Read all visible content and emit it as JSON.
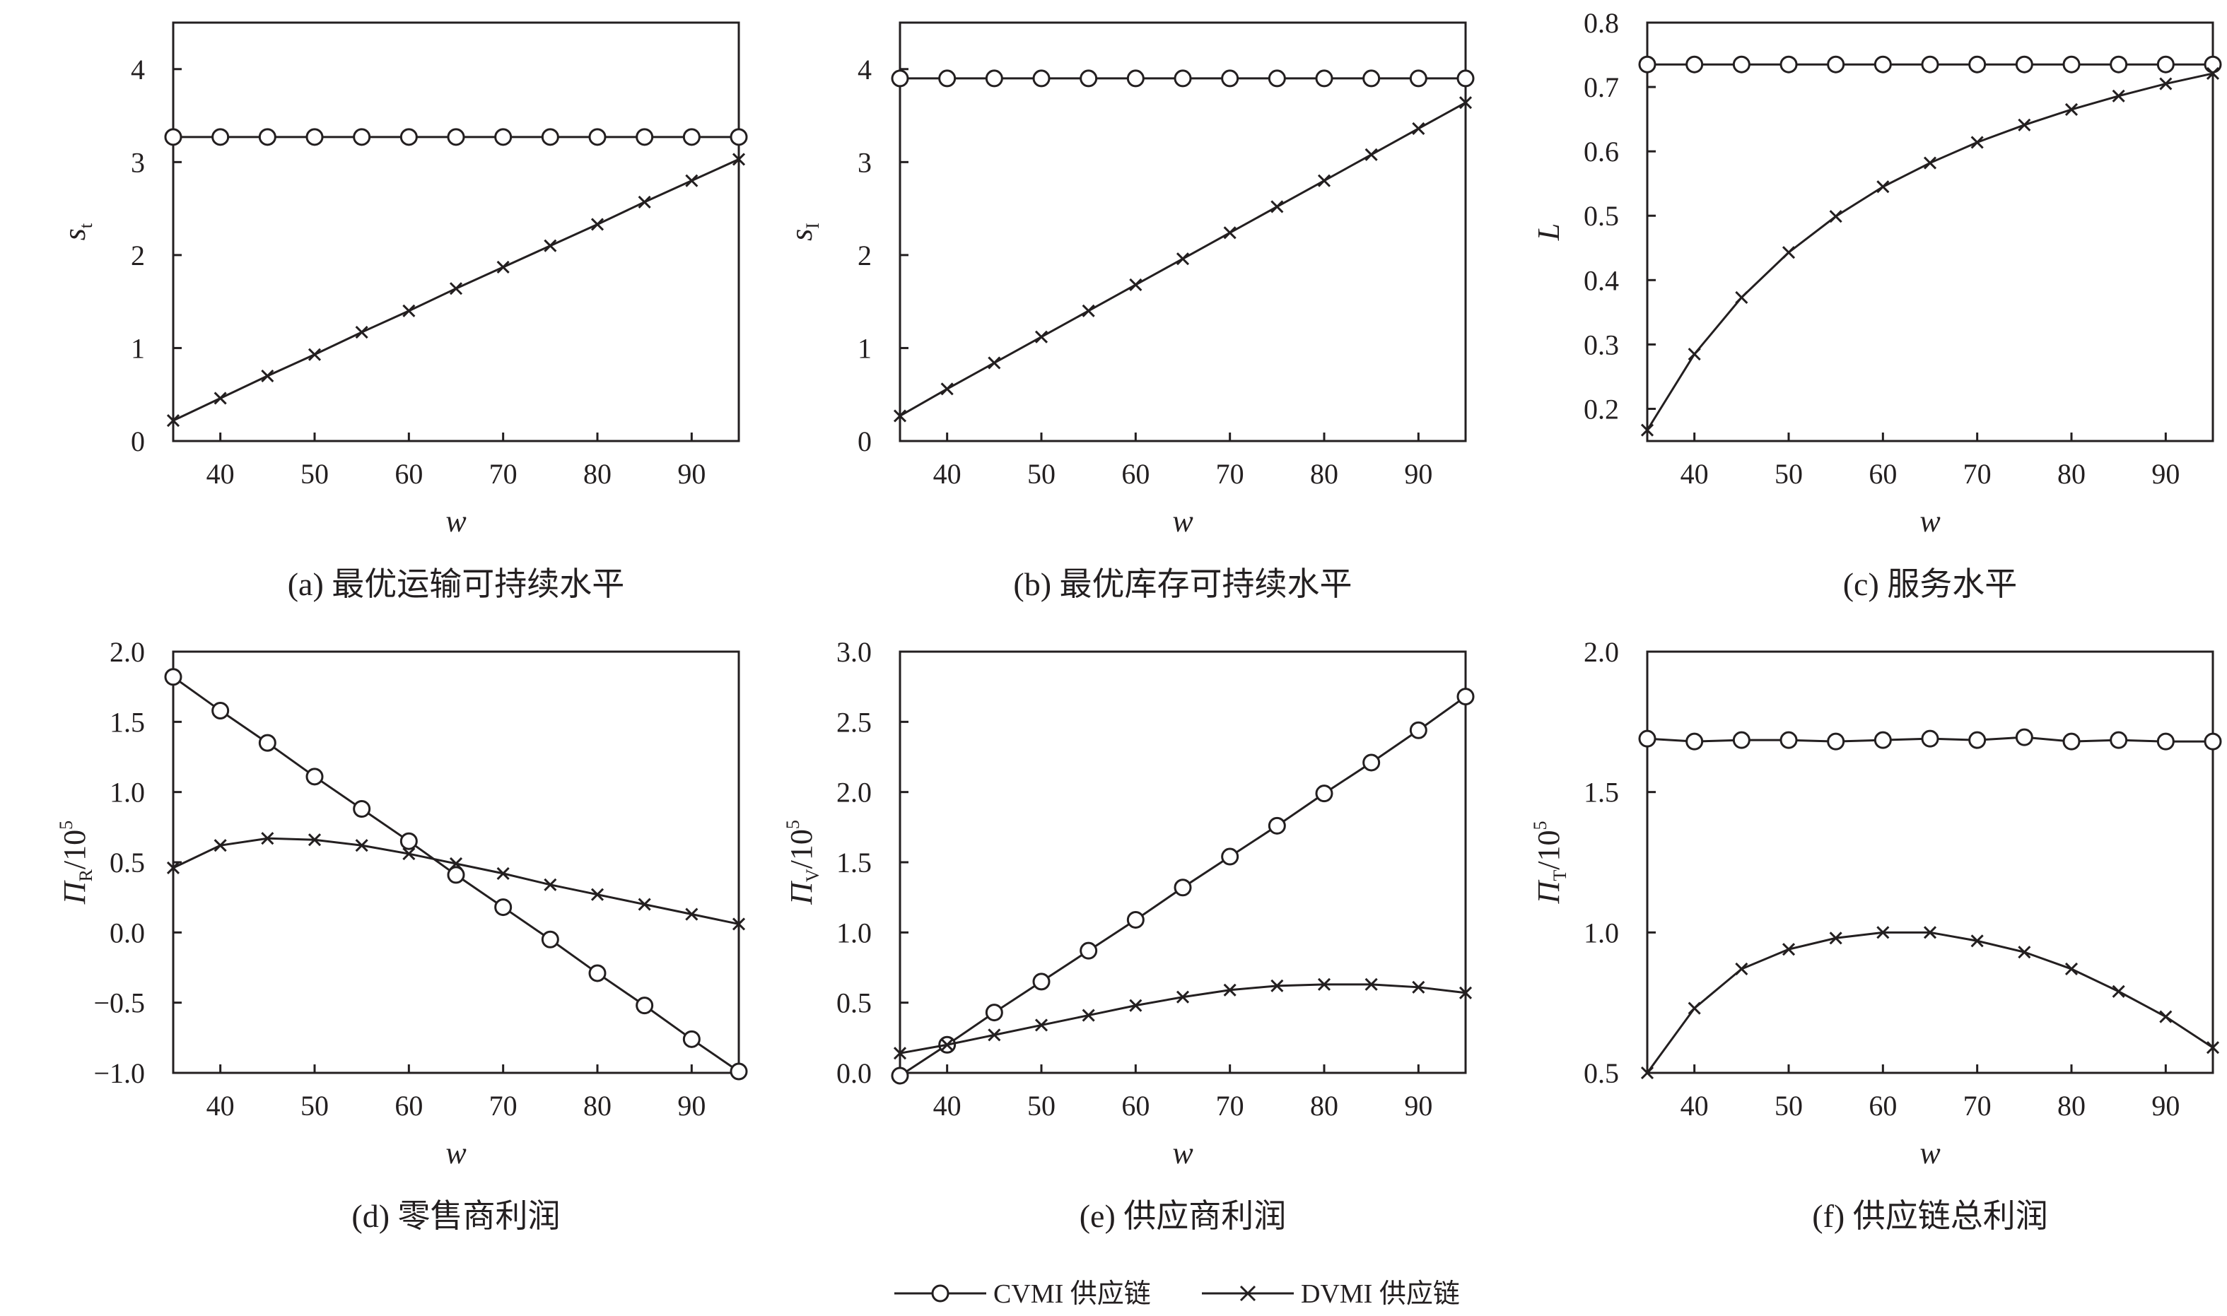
{
  "chart_data": [
    {
      "type": "line",
      "caption": "(a) 最优运输可持续水平",
      "xlabel": "w",
      "ylabel": "s",
      "ylabel_sub": "t",
      "ylabel_sup": "",
      "ylabel_suffix": "",
      "xlim": [
        35,
        95
      ],
      "ylim": [
        0,
        4.5
      ],
      "xticks": [
        40,
        50,
        60,
        70,
        80,
        90
      ],
      "yticks": [
        0,
        1,
        2,
        3,
        4
      ],
      "ytick_labels": [
        "0",
        "1",
        "2",
        "3",
        "4"
      ],
      "x": [
        35,
        40,
        45,
        50,
        55,
        60,
        65,
        70,
        75,
        80,
        85,
        90,
        95
      ],
      "series": [
        {
          "name": "CVMI 供应链",
          "marker": "circle",
          "values": [
            3.27,
            3.27,
            3.27,
            3.27,
            3.27,
            3.27,
            3.27,
            3.27,
            3.27,
            3.27,
            3.27,
            3.27,
            3.27
          ]
        },
        {
          "name": "DVMI 供应链",
          "marker": "x",
          "values": [
            0.22,
            0.46,
            0.7,
            0.93,
            1.17,
            1.4,
            1.64,
            1.87,
            2.1,
            2.33,
            2.57,
            2.8,
            3.03
          ]
        }
      ]
    },
    {
      "type": "line",
      "caption": "(b) 最优库存可持续水平",
      "xlabel": "w",
      "ylabel": "s",
      "ylabel_sub": "I",
      "ylabel_sup": "",
      "ylabel_suffix": "",
      "xlim": [
        35,
        95
      ],
      "ylim": [
        0,
        4.5
      ],
      "xticks": [
        40,
        50,
        60,
        70,
        80,
        90
      ],
      "yticks": [
        0,
        1,
        2,
        3,
        4
      ],
      "ytick_labels": [
        "0",
        "1",
        "2",
        "3",
        "4"
      ],
      "x": [
        35,
        40,
        45,
        50,
        55,
        60,
        65,
        70,
        75,
        80,
        85,
        90,
        95
      ],
      "series": [
        {
          "name": "CVMI 供应链",
          "marker": "circle",
          "values": [
            3.9,
            3.9,
            3.9,
            3.9,
            3.9,
            3.9,
            3.9,
            3.9,
            3.9,
            3.9,
            3.9,
            3.9,
            3.9
          ]
        },
        {
          "name": "DVMI 供应链",
          "marker": "x",
          "values": [
            0.27,
            0.56,
            0.84,
            1.12,
            1.4,
            1.68,
            1.96,
            2.24,
            2.52,
            2.8,
            3.08,
            3.36,
            3.64
          ]
        }
      ]
    },
    {
      "type": "line",
      "caption": "(c) 服务水平",
      "xlabel": "w",
      "ylabel": "L",
      "ylabel_sub": "",
      "ylabel_sup": "",
      "ylabel_suffix": "",
      "xlim": [
        35,
        95
      ],
      "ylim": [
        0.15,
        0.8
      ],
      "xticks": [
        40,
        50,
        60,
        70,
        80,
        90
      ],
      "yticks": [
        0.2,
        0.3,
        0.4,
        0.5,
        0.6,
        0.7,
        0.8
      ],
      "ytick_labels": [
        "0.2",
        "0.3",
        "0.4",
        "0.5",
        "0.6",
        "0.7",
        "0.8"
      ],
      "x": [
        35,
        40,
        45,
        50,
        55,
        60,
        65,
        70,
        75,
        80,
        85,
        90,
        95
      ],
      "series": [
        {
          "name": "CVMI 供应链",
          "marker": "circle",
          "values": [
            0.735,
            0.735,
            0.735,
            0.735,
            0.735,
            0.735,
            0.735,
            0.735,
            0.735,
            0.735,
            0.735,
            0.735,
            0.735
          ]
        },
        {
          "name": "DVMI 供应链",
          "marker": "x",
          "values": [
            0.167,
            0.285,
            0.373,
            0.443,
            0.499,
            0.545,
            0.582,
            0.614,
            0.641,
            0.665,
            0.686,
            0.705,
            0.721
          ]
        }
      ]
    },
    {
      "type": "line",
      "caption": "(d) 零售商利润",
      "xlabel": "w",
      "ylabel": "Π",
      "ylabel_sub": "R",
      "ylabel_sup": "5",
      "ylabel_suffix": "/10",
      "xlim": [
        35,
        95
      ],
      "ylim": [
        -1.0,
        2.0
      ],
      "xticks": [
        40,
        50,
        60,
        70,
        80,
        90
      ],
      "yticks": [
        -1.0,
        -0.5,
        0.0,
        0.5,
        1.0,
        1.5,
        2.0
      ],
      "ytick_labels": [
        "−1.0",
        "−0.5",
        "0.0",
        "0.5",
        "1.0",
        "1.5",
        "2.0"
      ],
      "x": [
        35,
        40,
        45,
        50,
        55,
        60,
        65,
        70,
        75,
        80,
        85,
        90,
        95
      ],
      "series": [
        {
          "name": "CVMI 供应链",
          "marker": "circle",
          "values": [
            1.82,
            1.58,
            1.35,
            1.11,
            0.88,
            0.65,
            0.41,
            0.18,
            -0.05,
            -0.29,
            -0.52,
            -0.76,
            -0.99
          ]
        },
        {
          "name": "DVMI 供应链",
          "marker": "x",
          "values": [
            0.46,
            0.62,
            0.67,
            0.66,
            0.62,
            0.56,
            0.49,
            0.42,
            0.34,
            0.27,
            0.2,
            0.13,
            0.06
          ]
        }
      ]
    },
    {
      "type": "line",
      "caption": "(e) 供应商利润",
      "xlabel": "w",
      "ylabel": "Π",
      "ylabel_sub": "V",
      "ylabel_sup": "5",
      "ylabel_suffix": "/10",
      "xlim": [
        35,
        95
      ],
      "ylim": [
        0,
        3.0
      ],
      "xticks": [
        40,
        50,
        60,
        70,
        80,
        90
      ],
      "yticks": [
        0,
        0.5,
        1.0,
        1.5,
        2.0,
        2.5,
        3.0
      ],
      "ytick_labels": [
        "0.0",
        "0.5",
        "1.0",
        "1.5",
        "2.0",
        "2.5",
        "3.0"
      ],
      "x": [
        35,
        40,
        45,
        50,
        55,
        60,
        65,
        70,
        75,
        80,
        85,
        90,
        95
      ],
      "series": [
        {
          "name": "CVMI 供应链",
          "marker": "circle",
          "values": [
            -0.02,
            0.2,
            0.43,
            0.65,
            0.87,
            1.09,
            1.32,
            1.54,
            1.76,
            1.99,
            2.21,
            2.44,
            2.68
          ]
        },
        {
          "name": "DVMI 供应链",
          "marker": "x",
          "values": [
            0.14,
            0.2,
            0.27,
            0.34,
            0.41,
            0.48,
            0.54,
            0.59,
            0.62,
            0.63,
            0.63,
            0.61,
            0.57
          ]
        }
      ]
    },
    {
      "type": "line",
      "caption": "(f) 供应链总利润",
      "xlabel": "w",
      "ylabel": "Π",
      "ylabel_sub": "T",
      "ylabel_sup": "5",
      "ylabel_suffix": "/10",
      "xlim": [
        35,
        95
      ],
      "ylim": [
        0.5,
        2.0
      ],
      "xticks": [
        40,
        50,
        60,
        70,
        80,
        90
      ],
      "yticks": [
        0.5,
        1.0,
        1.5,
        2.0
      ],
      "ytick_labels": [
        "0.5",
        "1.0",
        "1.5",
        "2.0"
      ],
      "x": [
        35,
        40,
        45,
        50,
        55,
        60,
        65,
        70,
        75,
        80,
        85,
        90,
        95
      ],
      "series": [
        {
          "name": "CVMI 供应链",
          "marker": "circle",
          "values": [
            1.69,
            1.68,
            1.685,
            1.685,
            1.68,
            1.685,
            1.69,
            1.685,
            1.695,
            1.68,
            1.685,
            1.68,
            1.68
          ]
        },
        {
          "name": "DVMI 供应链",
          "marker": "x",
          "values": [
            0.5,
            0.73,
            0.87,
            0.94,
            0.98,
            1.0,
            1.0,
            0.97,
            0.93,
            0.87,
            0.79,
            0.7,
            0.59
          ]
        }
      ]
    }
  ],
  "legend": {
    "items": [
      {
        "label": "CVMI 供应链",
        "marker": "circle"
      },
      {
        "label": "DVMI 供应链",
        "marker": "x"
      }
    ]
  }
}
